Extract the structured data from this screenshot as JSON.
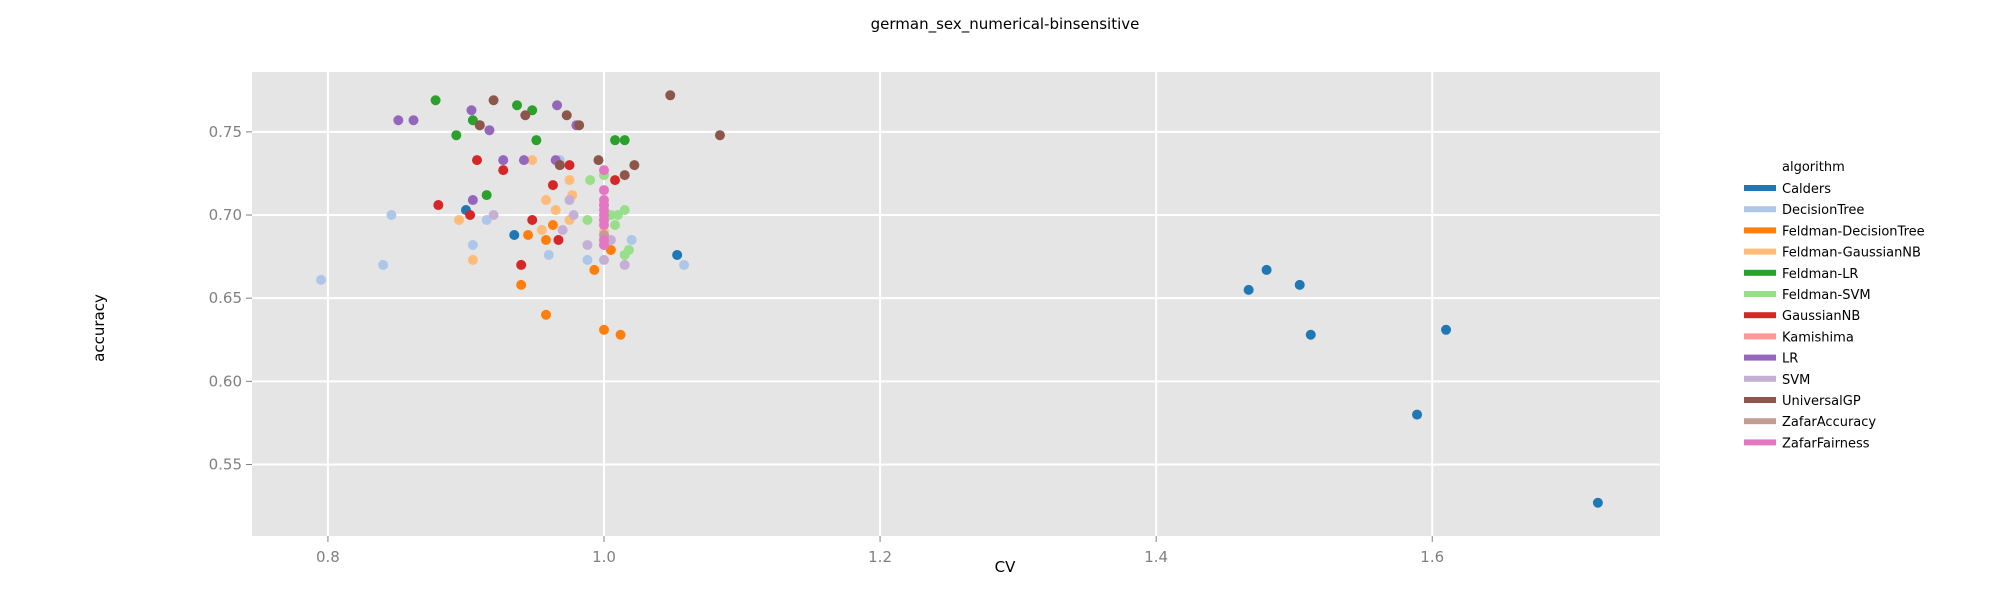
{
  "chart_data": {
    "type": "scatter",
    "title": "german_sex_numerical-binsensitive",
    "xlabel": "CV",
    "ylabel": "accuracy",
    "xlim": [
      0.745,
      1.765
    ],
    "ylim": [
      0.507,
      0.786
    ],
    "xticks": [
      0.8,
      1.0,
      1.2,
      1.4,
      1.6
    ],
    "xtick_labels": [
      "0.8",
      "1.0",
      "1.2",
      "1.4",
      "1.6"
    ],
    "yticks": [
      0.55,
      0.6,
      0.65,
      0.7,
      0.75
    ],
    "ytick_labels": [
      "0.55",
      "0.60",
      "0.65",
      "0.70",
      "0.75"
    ],
    "grid": true,
    "legend_title": "algorithm",
    "legend_position": "right",
    "series": [
      {
        "name": "Calders",
        "color": "#1f77b4",
        "points": [
          [
            0.9,
            0.703
          ],
          [
            0.935,
            0.688
          ],
          [
            1.053,
            0.676
          ],
          [
            1.467,
            0.655
          ],
          [
            1.48,
            0.667
          ],
          [
            1.504,
            0.658
          ],
          [
            1.512,
            0.628
          ],
          [
            1.589,
            0.58
          ],
          [
            1.61,
            0.631
          ],
          [
            1.72,
            0.527
          ]
        ]
      },
      {
        "name": "DecisionTree",
        "color": "#aec7e8",
        "points": [
          [
            0.795,
            0.661
          ],
          [
            0.84,
            0.67
          ],
          [
            0.846,
            0.7
          ],
          [
            0.905,
            0.682
          ],
          [
            0.915,
            0.697
          ],
          [
            0.96,
            0.676
          ],
          [
            0.988,
            0.673
          ],
          [
            1.02,
            0.685
          ],
          [
            1.058,
            0.67
          ],
          [
            0.968,
            0.733
          ],
          [
            1.0,
            0.697
          ]
        ]
      },
      {
        "name": "Feldman-DecisionTree",
        "color": "#ff7f0e",
        "points": [
          [
            0.94,
            0.658
          ],
          [
            0.945,
            0.688
          ],
          [
            0.958,
            0.685
          ],
          [
            0.963,
            0.694
          ],
          [
            0.958,
            0.64
          ],
          [
            0.993,
            0.667
          ],
          [
            1.0,
            0.631
          ],
          [
            1.005,
            0.679
          ],
          [
            1.012,
            0.628
          ]
        ]
      },
      {
        "name": "Feldman-GaussianNB",
        "color": "#ffbb78",
        "points": [
          [
            0.895,
            0.697
          ],
          [
            0.905,
            0.673
          ],
          [
            0.948,
            0.733
          ],
          [
            0.955,
            0.691
          ],
          [
            0.958,
            0.709
          ],
          [
            0.965,
            0.703
          ],
          [
            0.975,
            0.721
          ],
          [
            0.977,
            0.712
          ],
          [
            0.975,
            0.697
          ],
          [
            1.0,
            0.69
          ]
        ]
      },
      {
        "name": "Feldman-LR",
        "color": "#2ca02c",
        "points": [
          [
            0.878,
            0.769
          ],
          [
            0.893,
            0.748
          ],
          [
            0.905,
            0.757
          ],
          [
            0.915,
            0.712
          ],
          [
            0.937,
            0.766
          ],
          [
            0.948,
            0.763
          ],
          [
            0.951,
            0.745
          ],
          [
            1.008,
            0.745
          ],
          [
            1.015,
            0.745
          ]
        ]
      },
      {
        "name": "Feldman-SVM",
        "color": "#98df8a",
        "points": [
          [
            0.988,
            0.697
          ],
          [
            0.99,
            0.721
          ],
          [
            1.0,
            0.724
          ],
          [
            1.005,
            0.7
          ],
          [
            1.008,
            0.694
          ],
          [
            1.01,
            0.7
          ],
          [
            1.015,
            0.676
          ],
          [
            1.015,
            0.703
          ],
          [
            1.018,
            0.679
          ]
        ]
      },
      {
        "name": "GaussianNB",
        "color": "#d62728",
        "points": [
          [
            0.88,
            0.706
          ],
          [
            0.903,
            0.7
          ],
          [
            0.908,
            0.733
          ],
          [
            0.927,
            0.727
          ],
          [
            0.94,
            0.67
          ],
          [
            0.948,
            0.697
          ],
          [
            0.963,
            0.718
          ],
          [
            0.967,
            0.685
          ],
          [
            0.975,
            0.73
          ],
          [
            1.008,
            0.721
          ]
        ]
      },
      {
        "name": "Kamishima",
        "color": "#ff9896",
        "points": [
          [
            1.0,
            0.682
          ],
          [
            1.0,
            0.697
          ]
        ]
      },
      {
        "name": "LR",
        "color": "#9467bd",
        "points": [
          [
            0.851,
            0.757
          ],
          [
            0.862,
            0.757
          ],
          [
            0.904,
            0.763
          ],
          [
            0.905,
            0.709
          ],
          [
            0.91,
            0.754
          ],
          [
            0.917,
            0.751
          ],
          [
            0.927,
            0.733
          ],
          [
            0.942,
            0.733
          ],
          [
            0.965,
            0.733
          ],
          [
            0.966,
            0.766
          ],
          [
            0.98,
            0.754
          ],
          [
            0.968,
            0.73
          ]
        ]
      },
      {
        "name": "SVM",
        "color": "#c5b0d5",
        "points": [
          [
            0.92,
            0.7
          ],
          [
            0.97,
            0.691
          ],
          [
            0.975,
            0.709
          ],
          [
            0.978,
            0.7
          ],
          [
            0.988,
            0.682
          ],
          [
            1.0,
            0.673
          ],
          [
            1.005,
            0.685
          ],
          [
            1.015,
            0.67
          ],
          [
            1.0,
            0.706
          ]
        ]
      },
      {
        "name": "UniversalGP",
        "color": "#8c564b",
        "points": [
          [
            0.91,
            0.754
          ],
          [
            0.92,
            0.769
          ],
          [
            0.943,
            0.76
          ],
          [
            0.968,
            0.73
          ],
          [
            0.973,
            0.76
          ],
          [
            0.982,
            0.754
          ],
          [
            0.996,
            0.733
          ],
          [
            1.015,
            0.724
          ],
          [
            1.022,
            0.73
          ],
          [
            1.048,
            0.772
          ],
          [
            1.084,
            0.748
          ]
        ]
      },
      {
        "name": "ZafarAccuracy",
        "color": "#c49c94",
        "points": [
          [
            1.0,
            0.688
          ]
        ]
      },
      {
        "name": "ZafarFairness",
        "color": "#e377c2",
        "points": [
          [
            1.0,
            0.727
          ],
          [
            1.0,
            0.715
          ],
          [
            1.0,
            0.709
          ],
          [
            1.0,
            0.706
          ],
          [
            1.0,
            0.703
          ],
          [
            1.0,
            0.7
          ],
          [
            1.0,
            0.697
          ],
          [
            1.0,
            0.694
          ],
          [
            1.0,
            0.685
          ],
          [
            1.0,
            0.682
          ]
        ]
      }
    ]
  }
}
